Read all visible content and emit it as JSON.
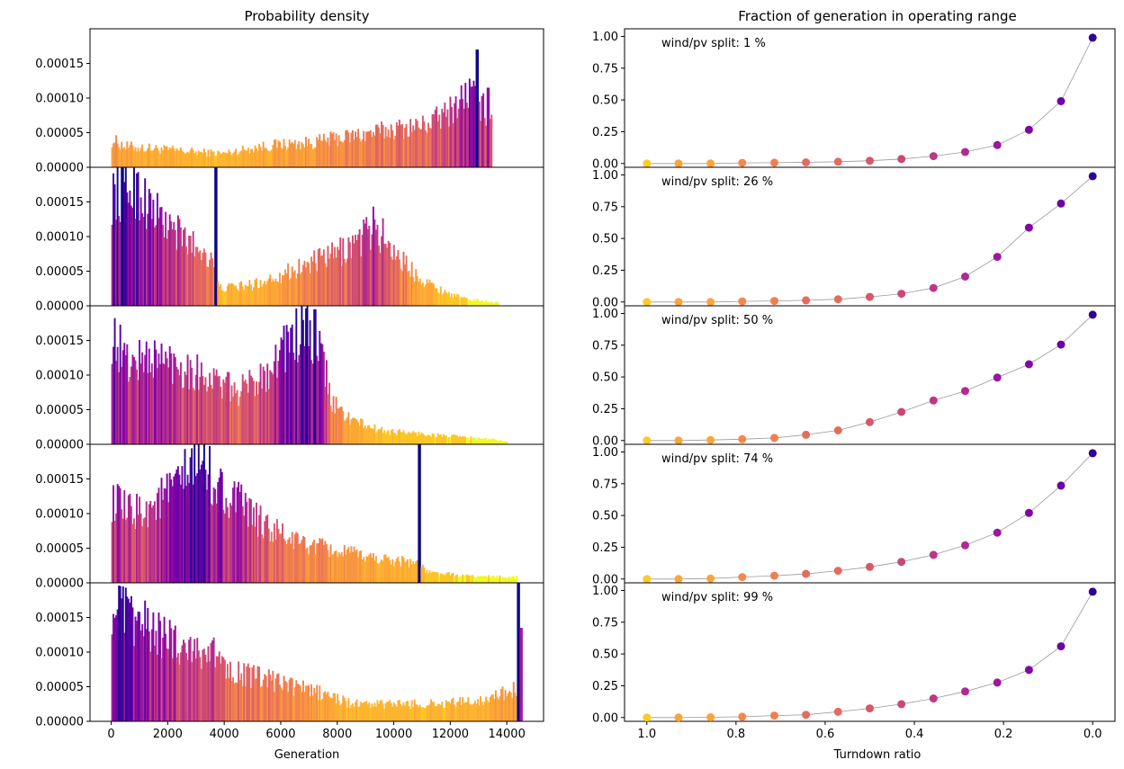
{
  "left_title": "Probability density",
  "right_title": "Fraction of generation in operating range",
  "left_xlabel": "Generation",
  "right_xlabel": "Turndown ratio",
  "chart_data": [
    {
      "type": "bar",
      "subtype": "histogram",
      "title": "Probability density",
      "xlabel": "Generation",
      "ylabel": "",
      "xlim": [
        -750,
        15300
      ],
      "ylim": [
        0,
        0.0002
      ],
      "xticks": [
        "0",
        "2000",
        "4000",
        "6000",
        "8000",
        "10000",
        "12000",
        "14000"
      ],
      "yticks": [
        "0.00000",
        "0.00005",
        "0.00010",
        "0.00015"
      ],
      "colormap": "plasma",
      "color_bands": [
        "#0d0887",
        "#2a0593",
        "#41049d",
        "#5601a4",
        "#6a00a8",
        "#7e03a8",
        "#8f0da4",
        "#a11b9b",
        "#b12a90",
        "#bf3984",
        "#cc4778",
        "#d6556d",
        "#e16462",
        "#ea7457",
        "#f1844b",
        "#f89540",
        "#fca636",
        "#fdb42f",
        "#fdc527",
        "#f0f921"
      ],
      "panels": [
        {
          "split": "1 %",
          "x_max": 13450,
          "peaks": [
            {
              "x": 12950,
              "y": 0.00017
            },
            {
              "x": 12750,
              "y": 0.0001
            },
            {
              "x": 13350,
              "y": 0.000115
            }
          ],
          "spikes": [],
          "profile": [
            [
              0,
              4e-05
            ],
            [
              500,
              3e-05
            ],
            [
              1500,
              2.7e-05
            ],
            [
              3000,
              2.2e-05
            ],
            [
              4000,
              2e-05
            ],
            [
              5000,
              2.8e-05
            ],
            [
              6000,
              3.3e-05
            ],
            [
              7000,
              3.5e-05
            ],
            [
              8000,
              4.2e-05
            ],
            [
              9000,
              4.8e-05
            ],
            [
              10000,
              5.5e-05
            ],
            [
              11000,
              6e-05
            ],
            [
              11800,
              7.5e-05
            ],
            [
              12300,
              9.5e-05
            ],
            [
              12700,
              0.00011
            ],
            [
              13000,
              9.5e-05
            ],
            [
              13400,
              7e-05
            ]
          ]
        },
        {
          "split": "26 %",
          "x_max": 13700,
          "peaks": [
            {
              "x": 3700,
              "y": 0.00021
            }
          ],
          "spikes": [],
          "profile": [
            [
              0,
              0.00016
            ],
            [
              800,
              0.000175
            ],
            [
              1400,
              0.00014
            ],
            [
              2000,
              0.000115
            ],
            [
              2800,
              9e-05
            ],
            [
              3600,
              7e-05
            ],
            [
              3800,
              2.5e-05
            ],
            [
              5000,
              3e-05
            ],
            [
              6000,
              4.5e-05
            ],
            [
              7000,
              6e-05
            ],
            [
              8000,
              7.5e-05
            ],
            [
              8800,
              9.5e-05
            ],
            [
              9300,
              0.000115
            ],
            [
              9800,
              9e-05
            ],
            [
              10500,
              5.5e-05
            ],
            [
              11500,
              2.5e-05
            ],
            [
              12500,
              1e-05
            ],
            [
              13600,
              5e-06
            ]
          ]
        },
        {
          "split": "50 %",
          "x_max": 14000,
          "peaks": [
            {
              "x": 7200,
              "y": 0.000195
            }
          ],
          "spikes": [],
          "profile": [
            [
              0,
              0.00016
            ],
            [
              600,
              0.000115
            ],
            [
              1300,
              0.000125
            ],
            [
              2000,
              0.00012
            ],
            [
              3000,
              0.000105
            ],
            [
              4000,
              8.5e-05
            ],
            [
              4500,
              7.5e-05
            ],
            [
              5500,
              0.000105
            ],
            [
              6200,
              0.000145
            ],
            [
              6900,
              0.000165
            ],
            [
              7500,
              0.00012
            ],
            [
              7800,
              6e-05
            ],
            [
              8500,
              3.5e-05
            ],
            [
              9500,
              2e-05
            ],
            [
              11000,
              1.5e-05
            ],
            [
              12500,
              1e-05
            ],
            [
              14000,
              5e-06
            ]
          ]
        },
        {
          "split": "74 %",
          "x_max": 14350,
          "peaks": [
            {
              "x": 10900,
              "y": 0.00021
            }
          ],
          "spikes": [],
          "profile": [
            [
              0,
              0.00012
            ],
            [
              600,
              0.0001
            ],
            [
              1400,
              0.00011
            ],
            [
              2200,
              0.000135
            ],
            [
              2800,
              0.00016
            ],
            [
              3200,
              0.00018
            ],
            [
              3700,
              0.00014
            ],
            [
              4500,
              0.000115
            ],
            [
              5500,
              8e-05
            ],
            [
              6500,
              6e-05
            ],
            [
              8000,
              4.5e-05
            ],
            [
              9500,
              3.5e-05
            ],
            [
              10800,
              3e-05
            ],
            [
              11200,
              1.5e-05
            ],
            [
              12500,
              1e-05
            ],
            [
              14300,
              8e-06
            ]
          ]
        },
        {
          "split": "99 %",
          "x_max": 14550,
          "peaks": [
            {
              "x": 14400,
              "y": 0.00021
            },
            {
              "x": 14500,
              "y": 0.000135
            }
          ],
          "spikes": [],
          "profile": [
            [
              0,
              0.00017
            ],
            [
              600,
              0.00015
            ],
            [
              1500,
              0.00013
            ],
            [
              2500,
              0.00011
            ],
            [
              3500,
              0.0001
            ],
            [
              4500,
              7e-05
            ],
            [
              5500,
              6e-05
            ],
            [
              6500,
              5e-05
            ],
            [
              7500,
              4e-05
            ],
            [
              8500,
              2.5e-05
            ],
            [
              10000,
              2.5e-05
            ],
            [
              11500,
              2.5e-05
            ],
            [
              13000,
              3e-05
            ],
            [
              14200,
              4.5e-05
            ]
          ]
        }
      ]
    },
    {
      "type": "line",
      "markers": true,
      "title": "Fraction of generation in operating range",
      "xlabel": "Turndown ratio",
      "ylabel": "",
      "xlim": [
        1.05,
        -0.05
      ],
      "ylim": [
        -0.03,
        1.06
      ],
      "inverted_x": true,
      "line_color": "#999999",
      "xticks": [
        "1.0",
        "0.8",
        "0.6",
        "0.4",
        "0.2",
        "0.0"
      ],
      "yticks": [
        "0.00",
        "0.25",
        "0.50",
        "0.75",
        "1.00"
      ],
      "x": [
        1.0,
        0.929,
        0.857,
        0.786,
        0.714,
        0.643,
        0.571,
        0.5,
        0.429,
        0.357,
        0.286,
        0.214,
        0.143,
        0.071,
        0.0
      ],
      "point_colors": [
        "#fdca26",
        "#fca537",
        "#fca537",
        "#f48849",
        "#f07f4f",
        "#e56b5d",
        "#e56b5d",
        "#d8576b",
        "#cc4778",
        "#bd3786",
        "#b12a90",
        "#9c179e",
        "#8405a7",
        "#6a00a8",
        "#2d0594"
      ],
      "panels": [
        {
          "label": "wind/pv split: 1 %",
          "values": [
            0.0,
            0.0,
            0.0,
            0.005,
            0.006,
            0.009,
            0.014,
            0.022,
            0.035,
            0.058,
            0.09,
            0.145,
            0.265,
            0.49,
            0.99
          ]
        },
        {
          "label": "wind/pv split: 26 %",
          "values": [
            0.0,
            0.0,
            0.0,
            0.005,
            0.008,
            0.013,
            0.022,
            0.04,
            0.065,
            0.11,
            0.2,
            0.355,
            0.585,
            0.775,
            0.99
          ]
        },
        {
          "label": "wind/pv split: 50 %",
          "values": [
            0.0,
            0.0,
            0.004,
            0.01,
            0.02,
            0.045,
            0.08,
            0.145,
            0.225,
            0.315,
            0.39,
            0.495,
            0.6,
            0.755,
            0.99
          ]
        },
        {
          "label": "wind/pv split: 74 %",
          "values": [
            0.0,
            0.0,
            0.004,
            0.015,
            0.026,
            0.04,
            0.065,
            0.095,
            0.135,
            0.19,
            0.265,
            0.365,
            0.52,
            0.735,
            0.99
          ]
        },
        {
          "label": "wind/pv split: 99 %",
          "values": [
            0.0,
            0.0,
            0.002,
            0.006,
            0.015,
            0.022,
            0.045,
            0.072,
            0.105,
            0.15,
            0.205,
            0.275,
            0.375,
            0.56,
            0.99
          ]
        }
      ]
    }
  ]
}
